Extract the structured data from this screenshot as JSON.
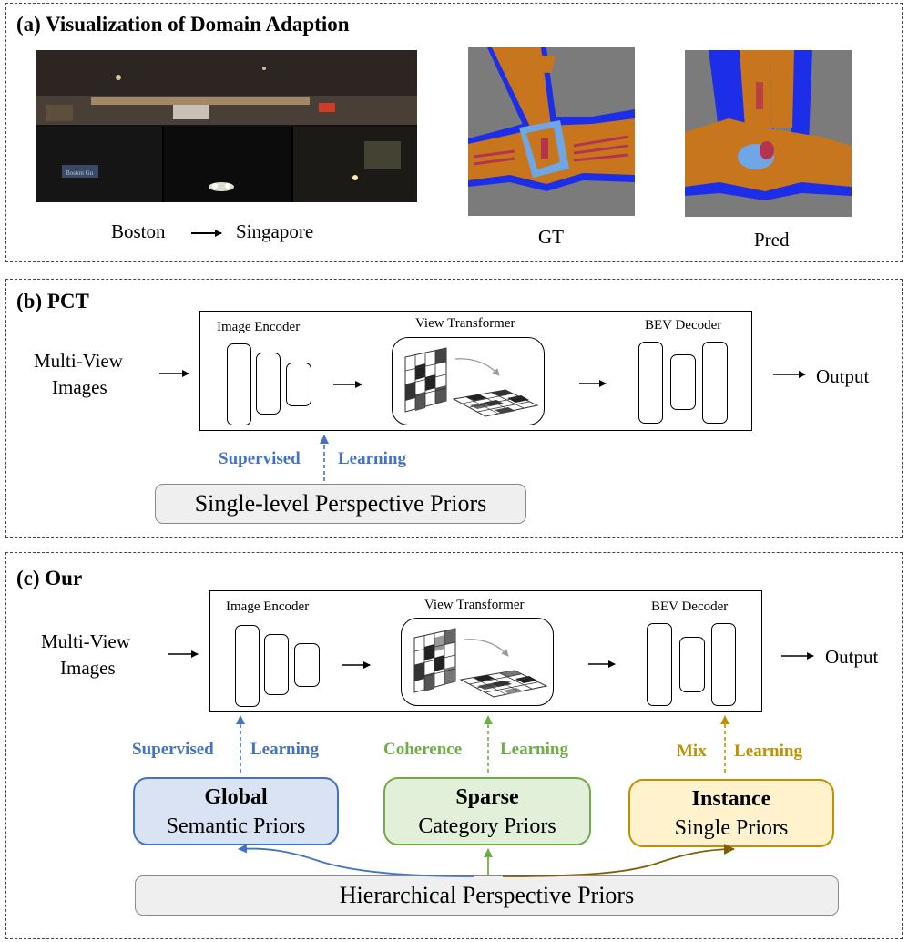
{
  "panel_a": {
    "title": "(a) Visualization of Domain Adaption",
    "source_label": "Boston",
    "target_label": "Singapore",
    "gt_label": "GT",
    "pred_label": "Pred",
    "photo_sign_text": "Boston Gu",
    "map_colors": {
      "background": "#7b7b7b",
      "road": "#c7761d",
      "edge": "#1c2ee8",
      "crossing": "#6fa7e6",
      "marking": "#b5344d"
    }
  },
  "panel_b": {
    "title": "(b) PCT",
    "input_label_1": "Multi-View",
    "input_label_2": "Images",
    "encoder_label": "Image Encoder",
    "transformer_label": "View Transformer",
    "decoder_label": "BEV Decoder",
    "output_label": "Output",
    "supervised_label": "Supervised",
    "learning_label": "Learning",
    "prior_label": "Single-level Perspective Priors"
  },
  "panel_c": {
    "title": "(c) Our",
    "input_label_1": "Multi-View",
    "input_label_2": "Images",
    "encoder_label": "Image Encoder",
    "transformer_label": "View Transformer",
    "decoder_label": "BEV Decoder",
    "output_label": "Output",
    "learning_word": "Learning",
    "branches": [
      {
        "method": "Supervised",
        "title": "Global",
        "subtitle": "Semantic Priors",
        "color": "#4472c4",
        "fill": "#dae3f3"
      },
      {
        "method": "Coherence",
        "title": "Sparse",
        "subtitle": "Category Priors",
        "color": "#70ad47",
        "fill": "#e2f0d9"
      },
      {
        "method": "Mix",
        "title": "Instance",
        "subtitle": "Single Priors",
        "color": "#bf9000",
        "fill": "#fff2cc"
      }
    ],
    "hierarchical_label": "Hierarchical Perspective Priors"
  },
  "colors": {
    "supervised": "#4472c4",
    "coherence": "#70ad47",
    "mix": "#bf9000",
    "mix_arrow": "#7f6000"
  }
}
